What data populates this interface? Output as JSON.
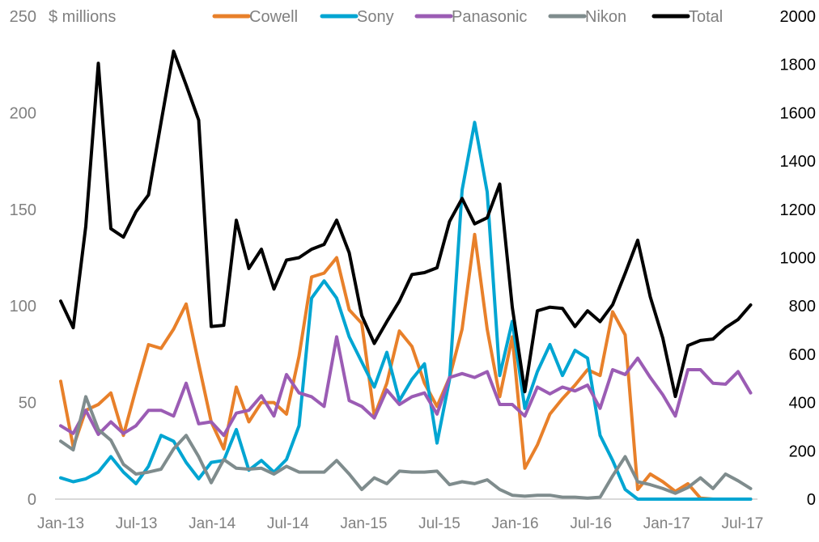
{
  "chart_data": {
    "type": "line",
    "title": "",
    "ylabel": "$ millions",
    "ylim": [
      0,
      250
    ],
    "y2lim": [
      0,
      2000
    ],
    "yticks": [
      "0",
      "50",
      "100",
      "150",
      "200",
      "250"
    ],
    "y2ticks": [
      "0",
      "200",
      "400",
      "600",
      "800",
      "1000",
      "1200",
      "1400",
      "1600",
      "1800",
      "2000"
    ],
    "xticks": [
      "Jan-13",
      "Jul-13",
      "Jan-14",
      "Jul-14",
      "Jan-15",
      "Jul-15",
      "Jan-16",
      "Jul-16",
      "Jan-17",
      "Jul-17"
    ],
    "x_start": "Jan-13",
    "x_end": "Aug-17",
    "legend_position": "top",
    "grid": false,
    "series": [
      {
        "name": "Cowell",
        "color": "#E8802A",
        "axis": "left",
        "values": [
          61,
          27,
          46,
          49,
          55,
          33,
          57,
          80,
          78,
          88,
          101,
          70,
          40,
          26,
          58,
          40,
          50,
          50,
          44,
          74,
          115,
          117,
          125,
          98,
          91,
          43,
          60,
          87,
          79,
          60,
          48,
          63,
          88,
          137,
          88,
          53,
          84,
          16,
          28,
          44,
          52,
          59,
          67,
          64,
          97,
          85,
          5,
          13,
          9,
          4,
          8,
          0.5,
          0,
          0,
          0,
          0
        ]
      },
      {
        "name": "Sony",
        "color": "#00A5D2",
        "axis": "left",
        "values": [
          11,
          9,
          10.5,
          14,
          22,
          14,
          8,
          17,
          33,
          30,
          19,
          10.5,
          19,
          20,
          36,
          15,
          20,
          14,
          20.5,
          38,
          104,
          113,
          104,
          84,
          71,
          58,
          76,
          51,
          62,
          70,
          29,
          62,
          160,
          195,
          159,
          64,
          92,
          47,
          66,
          80,
          64,
          77,
          73,
          33,
          20,
          5,
          0,
          0,
          0,
          0,
          0,
          0,
          0,
          0,
          0,
          0
        ]
      },
      {
        "name": "Panasonic",
        "color": "#9B5CB4",
        "axis": "left",
        "values": [
          38,
          34,
          46,
          33.5,
          40,
          34,
          38,
          46,
          46,
          43,
          60,
          39,
          40,
          33,
          44.5,
          46,
          53.5,
          43,
          64.5,
          55,
          53,
          48,
          84,
          51,
          48,
          42,
          56.5,
          49,
          53,
          55,
          44,
          63,
          65,
          63,
          66,
          49,
          49,
          43,
          58,
          54.5,
          58,
          56,
          59,
          47,
          67,
          64.5,
          73,
          63,
          54,
          43,
          67,
          67,
          60,
          59.5,
          66,
          55
        ]
      },
      {
        "name": "Nikon",
        "color": "#7F8C8D",
        "axis": "left",
        "values": [
          30,
          25.5,
          53,
          36,
          30.5,
          18,
          13,
          14,
          15.5,
          26,
          33,
          22,
          8.5,
          20.5,
          16,
          15.5,
          16,
          13,
          17,
          14,
          14,
          14,
          20,
          13,
          5,
          11,
          8,
          14.5,
          14,
          14,
          14.5,
          7.5,
          9,
          8,
          10,
          5,
          2,
          1.5,
          2,
          2,
          1,
          1,
          0.5,
          1,
          12,
          22,
          9,
          7.5,
          5.5,
          3,
          6,
          11,
          5.5,
          13,
          9.5,
          5.5
        ]
      },
      {
        "name": "Total",
        "color": "#000000",
        "axis": "right",
        "values": [
          820,
          710,
          1130,
          1805,
          1120,
          1085,
          1190,
          1260,
          1560,
          1855,
          1715,
          1570,
          715,
          720,
          1155,
          955,
          1035,
          870,
          990,
          1000,
          1035,
          1055,
          1155,
          1020,
          760,
          645,
          735,
          820,
          930,
          938,
          958,
          1150,
          1245,
          1140,
          1165,
          1305,
          795,
          445,
          780,
          795,
          790,
          715,
          780,
          735,
          805,
          935,
          1072,
          838,
          667,
          425,
          636,
          657,
          663,
          710,
          744,
          804
        ]
      }
    ]
  }
}
